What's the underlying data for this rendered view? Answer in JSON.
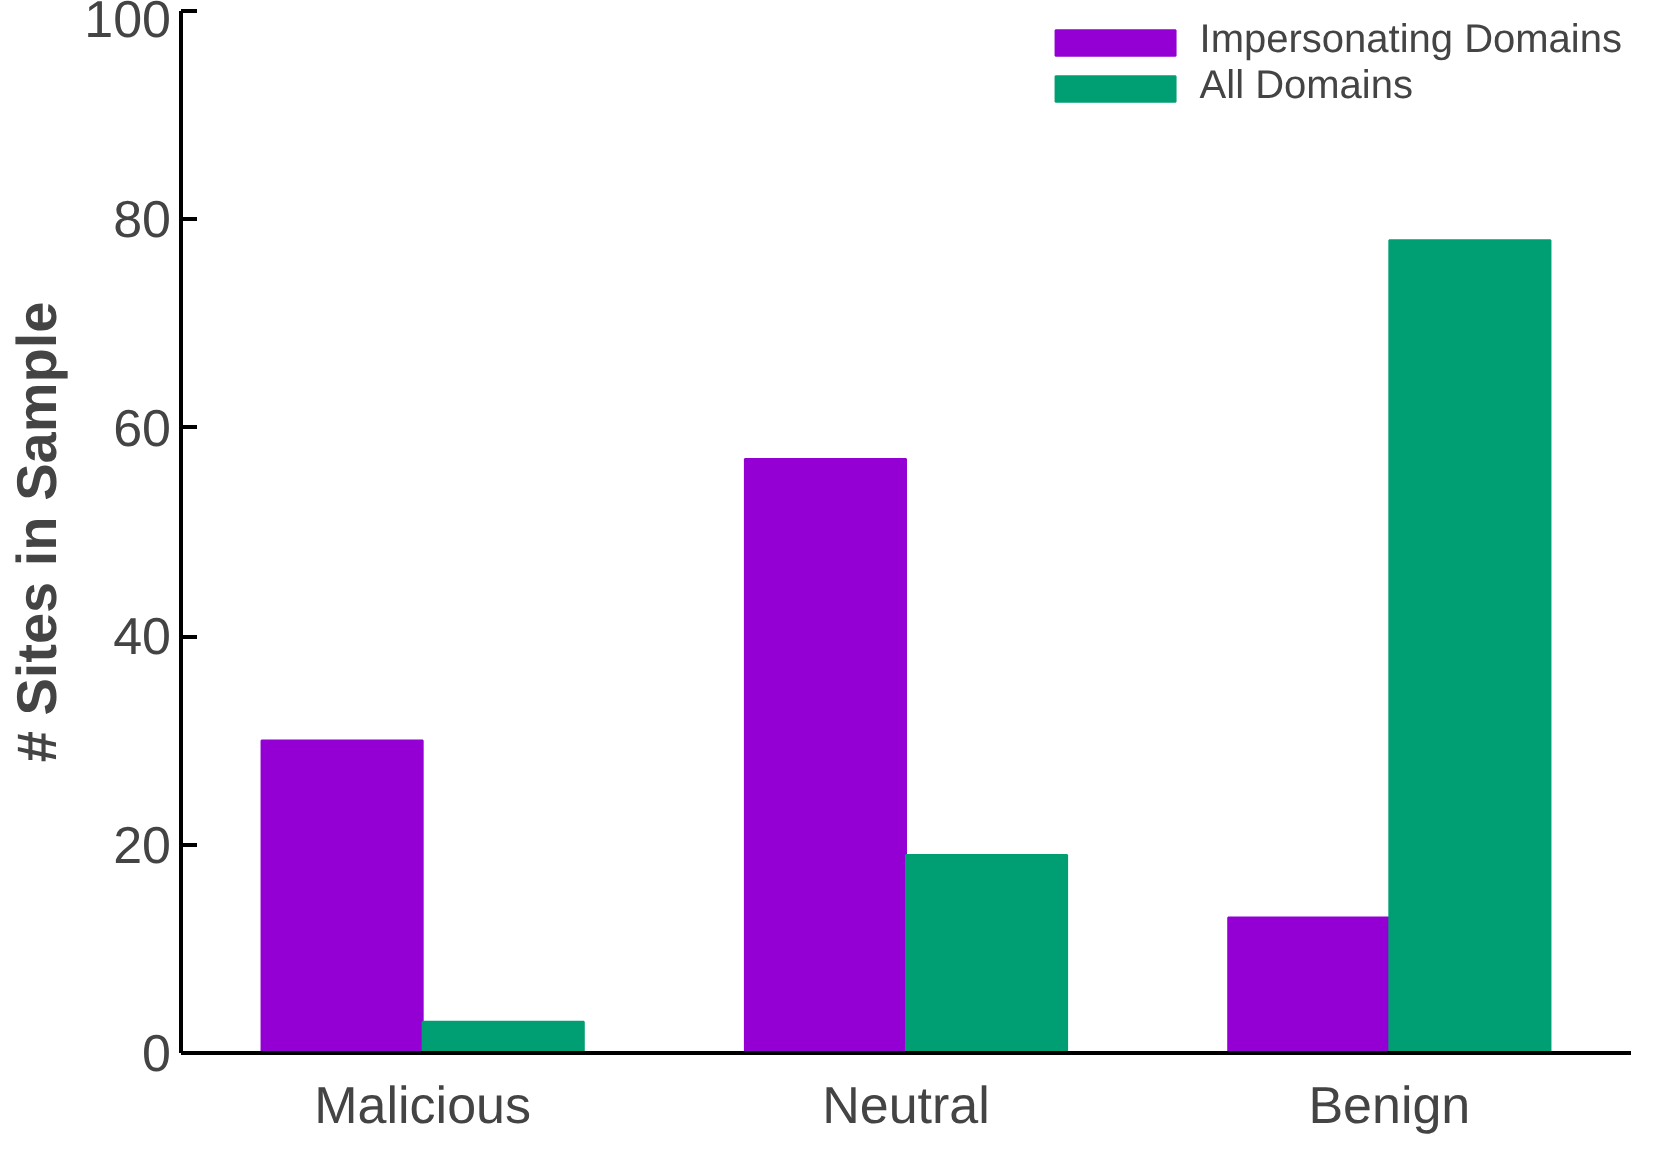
{
  "chart_data": {
    "type": "bar",
    "ylabel": "# Sites in Sample",
    "categories": [
      "Malicious",
      "Neutral",
      "Benign"
    ],
    "series": [
      {
        "name": "Impersonating Domains",
        "color": "#9400d3",
        "values": [
          30,
          57,
          13
        ]
      },
      {
        "name": "All Domains",
        "color": "#009e73",
        "values": [
          3,
          19,
          78
        ]
      }
    ],
    "ylim": [
      0,
      100
    ],
    "yticks": [
      0,
      20,
      40,
      60,
      80,
      100
    ],
    "grid": false,
    "legend": "top right"
  }
}
